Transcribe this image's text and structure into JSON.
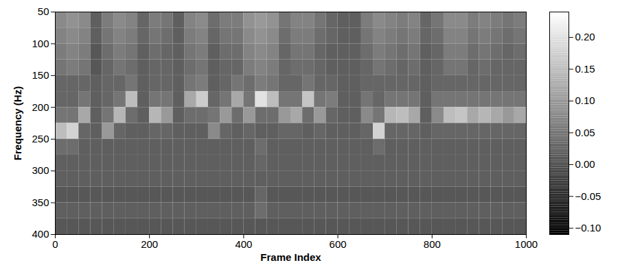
{
  "chart_data": {
    "type": "heatmap",
    "xlabel": "Frame Index",
    "ylabel": "Frequency (Hz)",
    "xlim": [
      0,
      1000
    ],
    "ylim": [
      400,
      50
    ],
    "xticks": [
      0,
      200,
      400,
      600,
      800,
      1000
    ],
    "yticks": [
      50,
      100,
      150,
      200,
      250,
      300,
      350,
      400
    ],
    "x": [
      0,
      25,
      50,
      75,
      100,
      125,
      150,
      175,
      200,
      225,
      250,
      275,
      300,
      325,
      350,
      375,
      400,
      425,
      450,
      475,
      500,
      525,
      550,
      575,
      600,
      625,
      650,
      675,
      700,
      725,
      750,
      775,
      800,
      825,
      850,
      875,
      900,
      925,
      950,
      975,
      1000
    ],
    "y": [
      50,
      75,
      100,
      125,
      150,
      175,
      200,
      225,
      250,
      275,
      300,
      325,
      350,
      375,
      400
    ],
    "values": [
      [
        0.08,
        0.09,
        0.08,
        0.02,
        0.06,
        0.08,
        0.07,
        0.03,
        0.06,
        0.05,
        0.02,
        0.07,
        0.08,
        0.04,
        0.06,
        0.06,
        0.09,
        0.1,
        0.09,
        0.05,
        0.07,
        0.07,
        0.05,
        0.03,
        0.02,
        0.02,
        0.06,
        0.08,
        0.07,
        0.06,
        0.07,
        0.03,
        0.05,
        0.08,
        0.08,
        0.06,
        0.07,
        0.06,
        0.05,
        0.06
      ],
      [
        0.07,
        0.08,
        0.07,
        0.02,
        0.05,
        0.07,
        0.06,
        0.03,
        0.05,
        0.04,
        0.02,
        0.06,
        0.07,
        0.03,
        0.05,
        0.05,
        0.08,
        0.09,
        0.08,
        0.04,
        0.06,
        0.06,
        0.04,
        0.03,
        0.02,
        0.02,
        0.05,
        0.07,
        0.06,
        0.05,
        0.06,
        0.03,
        0.04,
        0.07,
        0.07,
        0.05,
        0.06,
        0.05,
        0.04,
        0.05
      ],
      [
        0.06,
        0.07,
        0.06,
        0.01,
        0.04,
        0.06,
        0.05,
        0.02,
        0.04,
        0.03,
        0.02,
        0.05,
        0.06,
        0.02,
        0.04,
        0.04,
        0.07,
        0.08,
        0.07,
        0.03,
        0.05,
        0.05,
        0.03,
        0.02,
        0.02,
        0.02,
        0.04,
        0.06,
        0.05,
        0.04,
        0.05,
        0.02,
        0.03,
        0.06,
        0.06,
        0.04,
        0.05,
        0.04,
        0.03,
        0.04
      ],
      [
        0.05,
        0.06,
        0.05,
        0.01,
        0.03,
        0.05,
        0.04,
        0.02,
        0.03,
        0.03,
        0.02,
        0.04,
        0.05,
        0.02,
        0.03,
        0.03,
        0.06,
        0.07,
        0.06,
        0.03,
        0.04,
        0.04,
        0.03,
        0.02,
        0.02,
        0.02,
        0.03,
        0.05,
        0.04,
        0.03,
        0.04,
        0.02,
        0.03,
        0.05,
        0.05,
        0.03,
        0.04,
        0.03,
        0.03,
        0.03
      ],
      [
        0.03,
        0.03,
        0.03,
        0.02,
        0.03,
        0.03,
        0.05,
        0.02,
        0.03,
        0.03,
        0.02,
        0.05,
        0.06,
        0.02,
        0.03,
        0.05,
        0.04,
        0.06,
        0.05,
        0.03,
        0.03,
        0.05,
        0.03,
        0.03,
        0.02,
        0.02,
        0.03,
        0.03,
        0.03,
        0.03,
        0.03,
        0.02,
        0.03,
        0.03,
        0.03,
        0.03,
        0.03,
        0.03,
        0.03,
        0.03
      ],
      [
        0.03,
        0.03,
        0.05,
        0.02,
        0.03,
        0.05,
        0.15,
        0.02,
        0.05,
        0.05,
        0.02,
        0.12,
        0.17,
        0.03,
        0.05,
        0.12,
        0.05,
        0.2,
        0.15,
        0.05,
        0.05,
        0.16,
        0.05,
        0.06,
        0.02,
        0.02,
        0.05,
        0.03,
        0.05,
        0.05,
        0.05,
        0.02,
        0.05,
        0.05,
        0.05,
        0.05,
        0.05,
        0.05,
        0.05,
        0.05
      ],
      [
        0.05,
        0.05,
        0.12,
        0.02,
        0.05,
        0.14,
        0.04,
        0.02,
        0.14,
        0.1,
        0.02,
        0.04,
        0.04,
        0.05,
        0.1,
        0.04,
        0.1,
        0.04,
        0.04,
        0.1,
        0.12,
        0.04,
        0.1,
        0.03,
        0.02,
        0.02,
        0.08,
        0.05,
        0.14,
        0.15,
        0.12,
        0.02,
        0.08,
        0.15,
        0.16,
        0.12,
        0.14,
        0.12,
        0.1,
        0.12
      ],
      [
        0.15,
        0.18,
        0.03,
        0.02,
        0.1,
        0.03,
        0.02,
        0.02,
        0.03,
        0.03,
        0.02,
        0.02,
        0.02,
        0.08,
        0.03,
        0.02,
        0.03,
        0.02,
        0.02,
        0.03,
        0.03,
        0.02,
        0.03,
        0.02,
        0.02,
        0.02,
        0.03,
        0.18,
        0.03,
        0.03,
        0.03,
        0.02,
        0.03,
        0.03,
        0.03,
        0.03,
        0.03,
        0.03,
        0.03,
        0.03
      ],
      [
        0.04,
        0.04,
        0.02,
        0.02,
        0.02,
        0.02,
        0.02,
        0.02,
        0.02,
        0.02,
        0.02,
        0.02,
        0.02,
        0.02,
        0.02,
        0.02,
        0.02,
        0.04,
        0.02,
        0.02,
        0.02,
        0.02,
        0.02,
        0.02,
        0.02,
        0.02,
        0.02,
        0.04,
        0.02,
        0.02,
        0.02,
        0.02,
        0.02,
        0.02,
        0.02,
        0.02,
        0.02,
        0.02,
        0.02,
        0.02
      ],
      [
        0.02,
        0.02,
        0.02,
        0.02,
        0.02,
        0.02,
        0.02,
        0.02,
        0.02,
        0.02,
        0.02,
        0.02,
        0.02,
        0.02,
        0.02,
        0.02,
        0.02,
        0.03,
        0.02,
        0.02,
        0.02,
        0.02,
        0.02,
        0.02,
        0.02,
        0.02,
        0.02,
        0.02,
        0.02,
        0.02,
        0.02,
        0.02,
        0.02,
        0.02,
        0.02,
        0.02,
        0.02,
        0.02,
        0.02,
        0.02
      ],
      [
        0.02,
        0.02,
        0.02,
        0.02,
        0.02,
        0.02,
        0.02,
        0.02,
        0.02,
        0.02,
        0.02,
        0.02,
        0.02,
        0.02,
        0.02,
        0.02,
        0.02,
        0.02,
        0.02,
        0.02,
        0.02,
        0.02,
        0.02,
        0.02,
        0.02,
        0.02,
        0.02,
        0.02,
        0.02,
        0.02,
        0.02,
        0.02,
        0.02,
        0.02,
        0.02,
        0.02,
        0.02,
        0.02,
        0.02,
        0.02
      ],
      [
        0.01,
        0.01,
        0.01,
        0.01,
        0.01,
        0.01,
        0.01,
        0.01,
        0.01,
        0.01,
        0.01,
        0.01,
        0.01,
        0.01,
        0.01,
        0.01,
        0.01,
        0.03,
        0.01,
        0.01,
        0.01,
        0.01,
        0.01,
        0.01,
        0.01,
        0.01,
        0.01,
        0.01,
        0.01,
        0.01,
        0.01,
        0.01,
        0.01,
        0.01,
        0.01,
        0.01,
        0.01,
        0.01,
        0.01,
        0.01
      ],
      [
        0.02,
        0.02,
        0.02,
        0.02,
        0.02,
        0.02,
        0.02,
        0.02,
        0.02,
        0.02,
        0.02,
        0.02,
        0.02,
        0.02,
        0.02,
        0.02,
        0.02,
        0.04,
        0.02,
        0.02,
        0.02,
        0.02,
        0.02,
        0.02,
        0.02,
        0.02,
        0.02,
        0.02,
        0.02,
        0.02,
        0.02,
        0.02,
        0.02,
        0.02,
        0.02,
        0.02,
        0.02,
        0.02,
        0.02,
        0.02
      ],
      [
        0.01,
        0.01,
        0.01,
        0.01,
        0.01,
        0.01,
        0.01,
        0.01,
        0.01,
        0.01,
        0.01,
        0.01,
        0.01,
        0.01,
        0.01,
        0.01,
        0.01,
        0.01,
        0.01,
        0.01,
        0.01,
        0.01,
        0.01,
        0.01,
        0.01,
        0.01,
        0.01,
        0.01,
        0.01,
        0.01,
        0.01,
        0.01,
        0.01,
        0.01,
        0.01,
        0.01,
        0.01,
        0.01,
        0.01,
        0.01
      ]
    ],
    "colorbar": {
      "lim": [
        -0.11,
        0.24
      ],
      "ticks": [
        -0.1,
        -0.05,
        0,
        0.05,
        0.1,
        0.15,
        0.2
      ]
    }
  }
}
